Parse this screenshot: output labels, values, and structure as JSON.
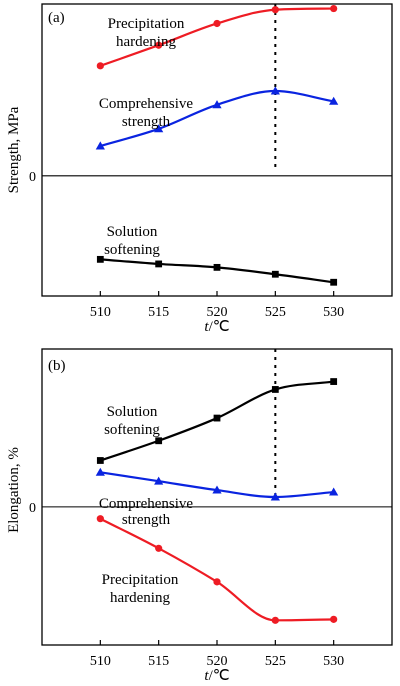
{
  "chart_data": [
    {
      "type": "line",
      "panel_label": "(a)",
      "ylabel": "Strength, MPa",
      "xlabel_italic": "t",
      "xlabel_unit": "/℃",
      "x": [
        510,
        515,
        520,
        525,
        530
      ],
      "x_tick_labels": [
        "510",
        "515",
        "520",
        "525",
        "530"
      ],
      "y_tick_labels": [
        "0"
      ],
      "ylim": [
        -1.05,
        1.5
      ],
      "vertical_marker_x": 525,
      "series": [
        {
          "name": "Precipitation hardening",
          "label_lines": [
            "Precipitation",
            "hardening"
          ],
          "color": "#ee1c24",
          "marker": "circle",
          "values": [
            0.96,
            1.14,
            1.33,
            1.45,
            1.46
          ]
        },
        {
          "name": "Comprehensive strength",
          "label_lines": [
            "Comprehensive",
            "strength"
          ],
          "color": "#0a24e0",
          "marker": "triangle",
          "values": [
            0.26,
            0.41,
            0.62,
            0.74,
            0.65
          ]
        },
        {
          "name": "Solution softening",
          "label_lines": [
            "Solution",
            "softening"
          ],
          "color": "#000000",
          "marker": "square",
          "values": [
            -0.73,
            -0.77,
            -0.8,
            -0.86,
            -0.93
          ]
        }
      ]
    },
    {
      "type": "line",
      "panel_label": "(b)",
      "ylabel": "Elongation, %",
      "xlabel_italic": "t",
      "xlabel_unit": "/℃",
      "x": [
        510,
        515,
        520,
        525,
        530
      ],
      "x_tick_labels": [
        "510",
        "515",
        "520",
        "525",
        "530"
      ],
      "y_tick_labels": [
        "0"
      ],
      "ylim": [
        -1.4,
        1.6
      ],
      "vertical_marker_x": 525,
      "series": [
        {
          "name": "Solution softening",
          "label_lines": [
            "Solution",
            "softening"
          ],
          "color": "#000000",
          "marker": "square",
          "values": [
            0.47,
            0.67,
            0.9,
            1.19,
            1.27
          ]
        },
        {
          "name": "Comprehensive strength",
          "label_lines": [
            "Comprehensive",
            "strength"
          ],
          "color": "#0a24e0",
          "marker": "triangle",
          "values": [
            0.35,
            0.26,
            0.17,
            0.1,
            0.15
          ]
        },
        {
          "name": "Precipitation hardening",
          "label_lines": [
            "Precipitation",
            "hardening"
          ],
          "color": "#ee1c24",
          "marker": "circle",
          "values": [
            -0.12,
            -0.42,
            -0.76,
            -1.15,
            -1.14
          ]
        }
      ]
    }
  ]
}
